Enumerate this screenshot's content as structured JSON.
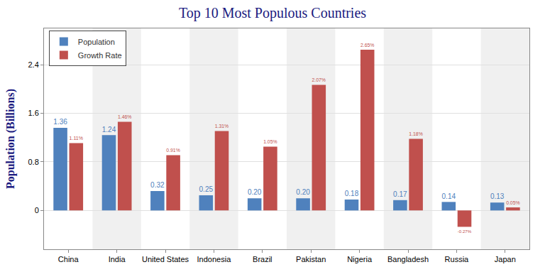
{
  "chart_data": {
    "type": "bar",
    "title": "Top 10 Most Populous Countries",
    "y_label": "Population (Billions)",
    "categories": [
      "China",
      "India",
      "United States",
      "Indonesia",
      "Brazil",
      "Pakistan",
      "Nigeria",
      "Bangladesh",
      "Russia",
      "Japan"
    ],
    "series": [
      {
        "name": "Population",
        "color": "#4f81bd",
        "values": [
          1.36,
          1.24,
          0.32,
          0.25,
          0.2,
          0.2,
          0.18,
          0.17,
          0.14,
          0.13
        ],
        "value_labels": [
          "1.36",
          "1.24",
          "0.32",
          "0.25",
          "0.20",
          "0.20",
          "0.18",
          "0.17",
          "0.14",
          "0.13"
        ]
      },
      {
        "name": "Growth Rate",
        "color": "#c0504d",
        "values": [
          1.11,
          1.46,
          0.91,
          1.31,
          1.05,
          2.07,
          2.65,
          1.18,
          -0.27,
          0.05
        ],
        "value_labels": [
          "1.11%",
          "1.46%",
          "0.91%",
          "1.31%",
          "1.05%",
          "2.07%",
          "2.65%",
          "1.18%",
          "-0.27%",
          "0.05%"
        ]
      }
    ],
    "ylim": [
      -0.64,
      3.0
    ],
    "yticks": [
      0,
      0.8,
      1.6,
      2.4
    ],
    "grid": true,
    "legend": "top-left",
    "data_labels": true
  }
}
